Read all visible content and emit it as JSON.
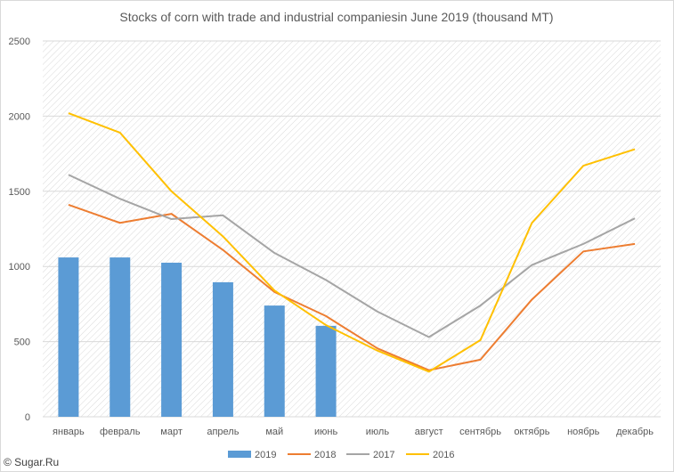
{
  "chart_data": {
    "type": "bar",
    "title": "Stocks of corn with trade and industrial companiesin June 2019 (thousand MT)",
    "categories": [
      "январь",
      "февраль",
      "март",
      "апрель",
      "май",
      "июнь",
      "июль",
      "август",
      "сентябрь",
      "октябрь",
      "ноябрь",
      "декабрь"
    ],
    "ylim": [
      0,
      2500
    ],
    "yticks": [
      0,
      500,
      1000,
      1500,
      2000,
      2500
    ],
    "grid": true,
    "legend_position": "bottom",
    "series": [
      {
        "name": "2019",
        "type": "bar",
        "color": "#5B9BD5",
        "values": [
          1060,
          1060,
          1025,
          895,
          740,
          605,
          null,
          null,
          null,
          null,
          null,
          null
        ]
      },
      {
        "name": "2018",
        "type": "line",
        "color": "#ED7D31",
        "values": [
          1410,
          1290,
          1350,
          1110,
          830,
          670,
          455,
          310,
          380,
          780,
          1100,
          1150
        ]
      },
      {
        "name": "2017",
        "type": "line",
        "color": "#A5A5A5",
        "values": [
          1610,
          1450,
          1315,
          1340,
          1090,
          910,
          700,
          530,
          740,
          1010,
          1150,
          1320
        ]
      },
      {
        "name": "2016",
        "type": "line",
        "color": "#FFC000",
        "values": [
          2020,
          1890,
          1500,
          1200,
          840,
          610,
          440,
          300,
          510,
          1290,
          1670,
          1780
        ]
      }
    ]
  },
  "source": "© Sugar.Ru"
}
